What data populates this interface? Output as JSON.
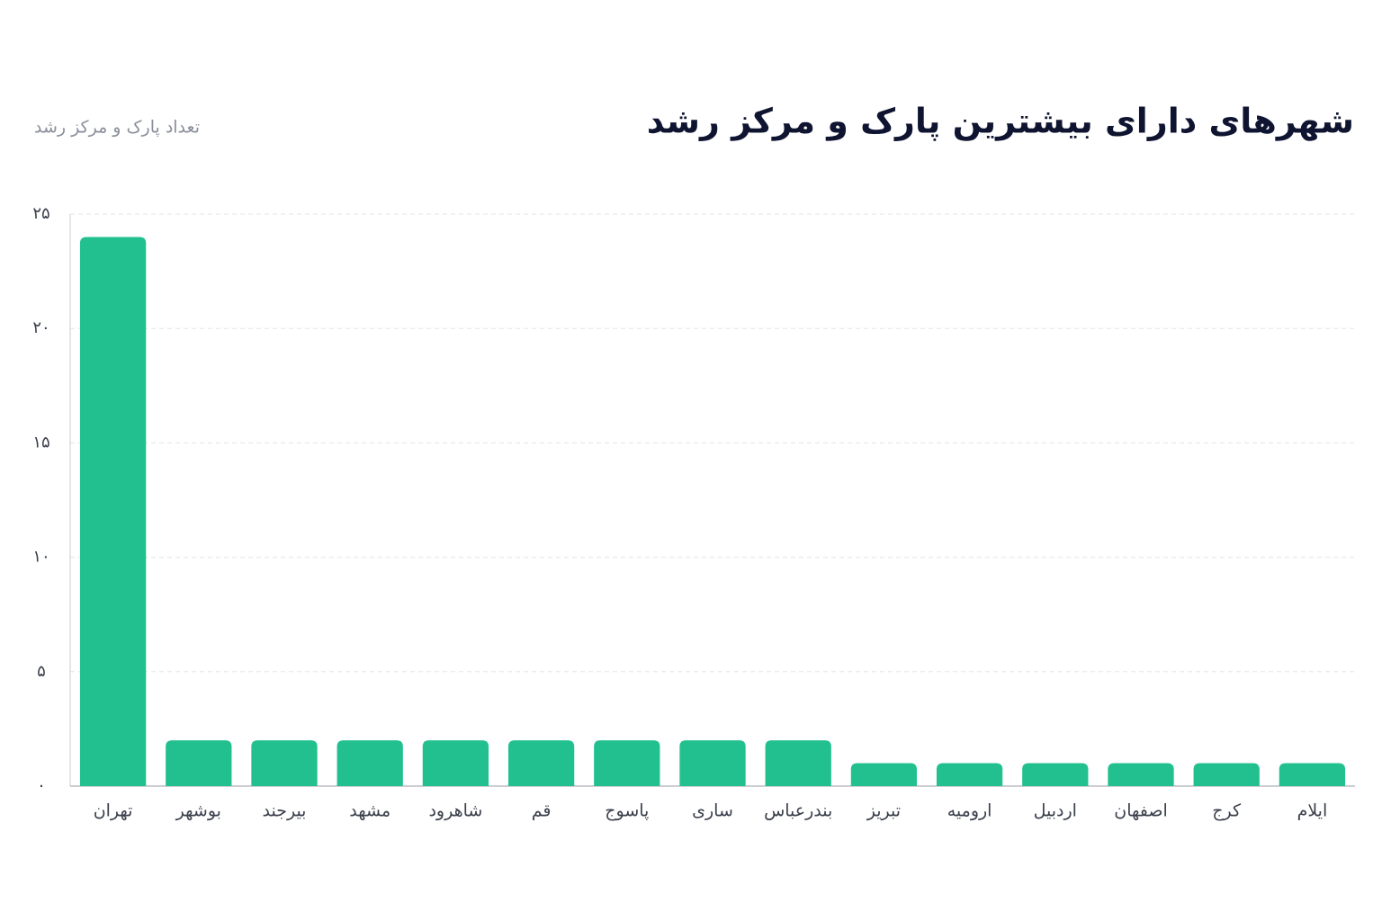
{
  "chart_data": {
    "type": "bar",
    "title": "شهرهای دارای بیشترین پارک و مرکز رشد",
    "y_label": "تعداد پارک و مرکز رشد",
    "categories": [
      "تهران",
      "بوشهر",
      "بیرجند",
      "مشهد",
      "شاهرود",
      "قم",
      "پاسوج",
      "ساری",
      "بندرعباس",
      "تبریز",
      "ارومیه",
      "اردبیل",
      "اصفهان",
      "کرج",
      "ایلام"
    ],
    "values": [
      24,
      2,
      2,
      2,
      2,
      2,
      2,
      2,
      2,
      1,
      1,
      1,
      1,
      1,
      1
    ],
    "color": "#23c08f",
    "ylim": [
      0,
      25
    ],
    "yticks": [
      {
        "value": 0,
        "label": "۰"
      },
      {
        "value": 5,
        "label": "۵"
      },
      {
        "value": 10,
        "label": "۱۰"
      },
      {
        "value": 15,
        "label": "۱۵"
      },
      {
        "value": 20,
        "label": "۲۰"
      },
      {
        "value": 25,
        "label": "۲۵"
      }
    ],
    "grid": true
  }
}
